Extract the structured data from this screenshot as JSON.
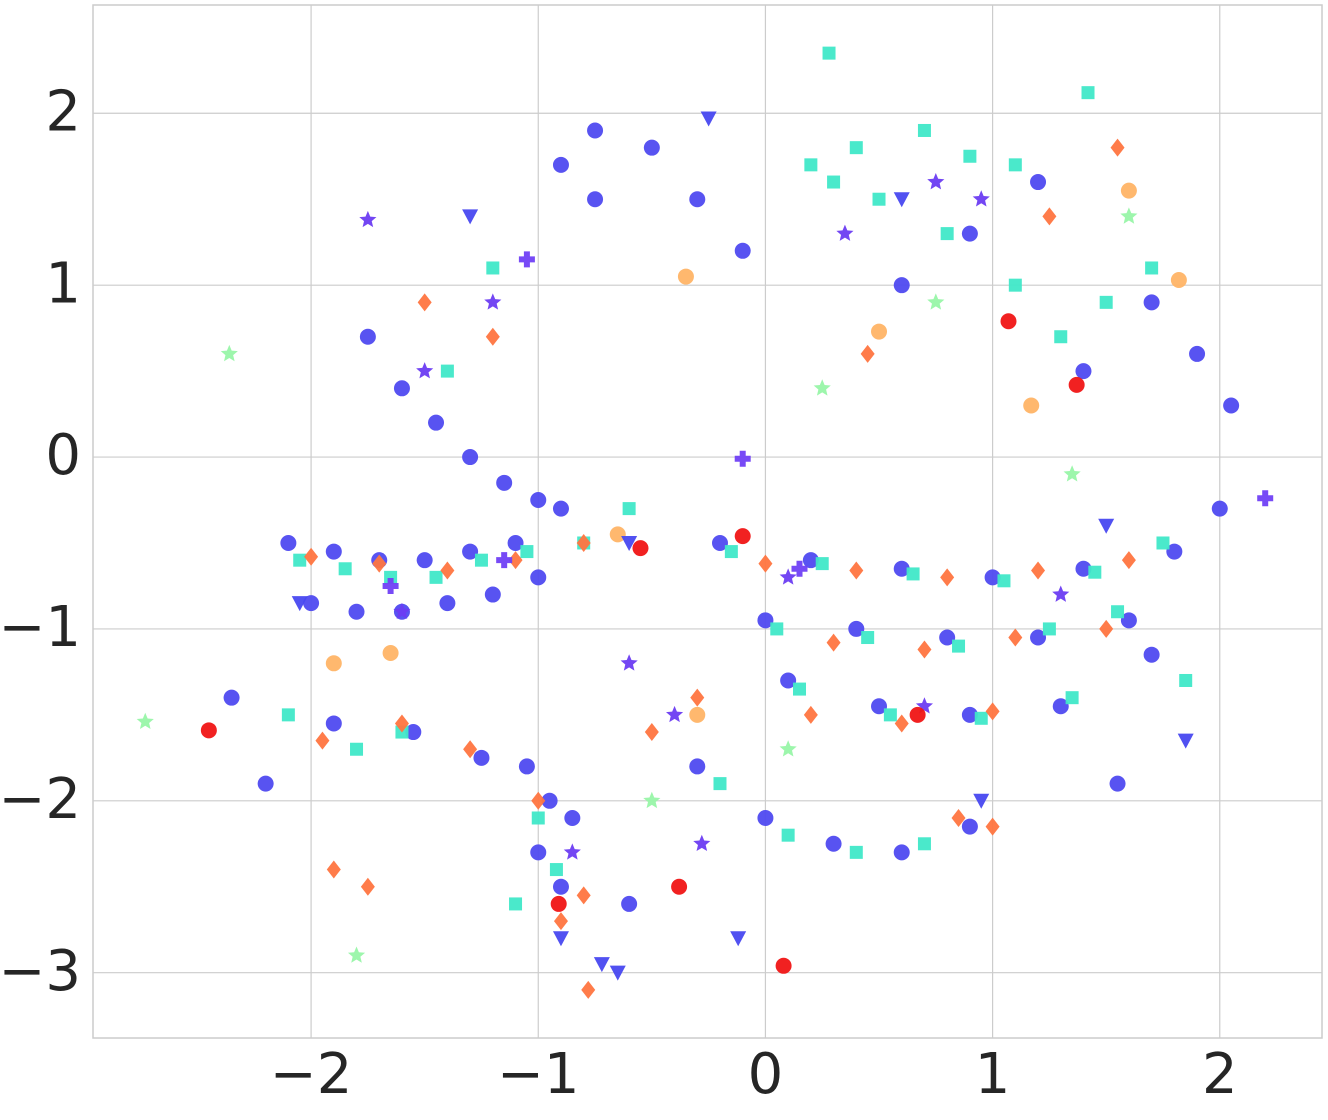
{
  "chart_data": {
    "type": "scatter",
    "xlim": [
      -2.96,
      2.45
    ],
    "ylim": [
      -3.38,
      2.63
    ],
    "xticks": [
      {
        "value": -2,
        "label": "−2"
      },
      {
        "value": -1,
        "label": "−1"
      },
      0,
      1,
      2
    ],
    "yticks": [
      {
        "value": -3,
        "label": "−3"
      },
      {
        "value": -2,
        "label": "−2"
      },
      {
        "value": -1,
        "label": "−1"
      },
      0,
      1,
      2
    ],
    "grid": true,
    "series": [
      {
        "color": "#4f4af0",
        "marker": "circle",
        "x": [
          -2.1,
          -1.9,
          -1.7,
          -1.5,
          -1.3,
          -1.1,
          -2.0,
          -1.8,
          -1.6,
          -1.4,
          -1.2,
          -1.0,
          -1.75,
          -1.6,
          -1.45,
          -1.3,
          -1.15,
          -1.0,
          -0.9,
          -0.2,
          0.2,
          0.6,
          1.0,
          1.4,
          1.8,
          2.0,
          0.0,
          0.4,
          0.8,
          1.2,
          1.6,
          0.1,
          0.5,
          0.9,
          1.3,
          -0.3,
          0.0,
          0.3,
          0.6,
          0.9,
          -1.05,
          -0.95,
          -1.0,
          -0.9,
          -0.75,
          -0.5,
          -0.3,
          -0.1,
          1.4,
          1.7,
          1.9,
          0.6,
          0.9,
          1.2,
          -0.9,
          -0.75,
          -2.2,
          -2.35,
          -1.9,
          -1.55,
          -1.25,
          -0.85,
          -0.6,
          1.55,
          1.7,
          2.05
        ],
        "y": [
          -0.5,
          -0.55,
          -0.6,
          -0.6,
          -0.55,
          -0.5,
          -0.85,
          -0.9,
          -0.9,
          -0.85,
          -0.8,
          -0.7,
          0.7,
          0.4,
          0.2,
          0.0,
          -0.15,
          -0.25,
          -0.3,
          -0.5,
          -0.6,
          -0.65,
          -0.7,
          -0.65,
          -0.55,
          -0.3,
          -0.95,
          -1.0,
          -1.05,
          -1.05,
          -0.95,
          -1.3,
          -1.45,
          -1.5,
          -1.45,
          -1.8,
          -2.1,
          -2.25,
          -2.3,
          -2.15,
          -1.8,
          -2.0,
          -2.3,
          -2.5,
          1.9,
          1.8,
          1.5,
          1.2,
          0.5,
          0.9,
          0.6,
          1.0,
          1.3,
          1.6,
          1.7,
          1.5,
          -1.9,
          -1.4,
          -1.55,
          -1.6,
          -1.75,
          -2.1,
          -2.6,
          -1.9,
          -1.15,
          0.3
        ]
      },
      {
        "color": "#40e8c8",
        "marker": "square",
        "x": [
          -2.05,
          -1.85,
          -1.65,
          -1.45,
          -1.25,
          -1.05,
          -0.15,
          0.25,
          0.65,
          1.05,
          1.45,
          1.75,
          0.05,
          0.45,
          0.85,
          1.25,
          1.55,
          0.15,
          0.55,
          0.95,
          1.35,
          -0.2,
          0.1,
          0.4,
          0.7,
          -1.0,
          -0.92,
          -1.1,
          0.3,
          0.5,
          0.8,
          1.1,
          1.3,
          1.5,
          1.7,
          0.2,
          0.4,
          0.7,
          0.9,
          1.1,
          -1.2,
          -1.4,
          -0.6,
          -0.8,
          -2.1,
          -1.8,
          -1.6,
          0.28,
          1.42,
          1.85
        ],
        "y": [
          -0.6,
          -0.65,
          -0.7,
          -0.7,
          -0.6,
          -0.55,
          -0.55,
          -0.62,
          -0.68,
          -0.72,
          -0.67,
          -0.5,
          -1.0,
          -1.05,
          -1.1,
          -1.0,
          -0.9,
          -1.35,
          -1.5,
          -1.52,
          -1.4,
          -1.9,
          -2.2,
          -2.3,
          -2.25,
          -2.1,
          -2.4,
          -2.6,
          1.6,
          1.5,
          1.3,
          1.0,
          0.7,
          0.9,
          1.1,
          1.7,
          1.8,
          1.9,
          1.75,
          1.7,
          1.1,
          0.5,
          -0.3,
          -0.5,
          -1.5,
          -1.7,
          -1.6,
          2.35,
          2.12,
          -1.3
        ]
      },
      {
        "color": "#ff7540",
        "marker": "diamond",
        "x": [
          -2.0,
          -1.7,
          -1.4,
          -1.1,
          -0.8,
          -1.95,
          -1.6,
          -1.3,
          0.0,
          0.4,
          0.8,
          1.2,
          1.6,
          0.3,
          0.7,
          1.1,
          1.5,
          0.2,
          0.6,
          1.0,
          -0.5,
          -0.3,
          -1.0,
          -0.9,
          -0.8,
          -1.5,
          -1.2,
          0.45,
          1.25,
          1.55,
          -1.75,
          -1.9,
          -0.78,
          1.0,
          0.85
        ],
        "y": [
          -0.58,
          -0.62,
          -0.66,
          -0.6,
          -0.5,
          -1.65,
          -1.55,
          -1.7,
          -0.62,
          -0.66,
          -0.7,
          -0.66,
          -0.6,
          -1.08,
          -1.12,
          -1.05,
          -1.0,
          -1.5,
          -1.55,
          -1.48,
          -1.6,
          -1.4,
          -2.0,
          -2.7,
          -2.55,
          0.9,
          0.7,
          0.6,
          1.4,
          1.8,
          -2.5,
          -2.4,
          -3.1,
          -2.15,
          -2.1
        ]
      },
      {
        "color": "#6b3cf2",
        "marker": "star",
        "x": [
          -1.75,
          -1.5,
          -1.2,
          -0.6,
          -0.4,
          0.1,
          0.35,
          0.75,
          0.95,
          1.3,
          -0.85,
          -1.6,
          -0.28,
          0.7
        ],
        "y": [
          1.38,
          0.5,
          0.9,
          -1.2,
          -1.5,
          -0.7,
          1.3,
          1.6,
          1.5,
          -0.8,
          -2.3,
          -0.9,
          -2.25,
          -1.45
        ]
      },
      {
        "color": "#f01515",
        "marker": "circle",
        "x": [
          -2.45,
          -0.55,
          -0.1,
          0.08,
          1.07,
          1.37,
          0.67,
          -0.38,
          -0.91
        ],
        "y": [
          -1.59,
          -0.53,
          -0.46,
          -2.96,
          0.79,
          0.42,
          -1.5,
          -2.5,
          -2.6
        ]
      },
      {
        "color": "#98f5a8",
        "marker": "star",
        "x": [
          -2.73,
          -2.36,
          -1.8,
          0.25,
          0.75,
          1.35,
          1.6,
          -0.5,
          0.1
        ],
        "y": [
          -1.54,
          0.6,
          -2.9,
          0.4,
          0.9,
          -0.1,
          1.4,
          -2.0,
          -1.7
        ]
      },
      {
        "color": "#ffb466",
        "marker": "circle",
        "x": [
          -1.65,
          -0.65,
          -0.35,
          0.5,
          1.6,
          1.82,
          1.17,
          -1.9,
          -0.3
        ],
        "y": [
          -1.14,
          -0.45,
          1.05,
          0.73,
          1.55,
          1.03,
          0.3,
          -1.2,
          -1.5
        ]
      },
      {
        "color": "#4848f0",
        "marker": "triangle",
        "x": [
          -1.3,
          -2.05,
          -0.6,
          -0.25,
          0.6,
          0.95,
          1.85,
          -0.12,
          -0.72,
          -0.65,
          -0.9,
          1.5
        ],
        "y": [
          1.4,
          -0.85,
          -0.5,
          1.97,
          1.5,
          -2.0,
          -1.65,
          -2.8,
          -2.95,
          -3.0,
          -2.8,
          -0.4
        ]
      },
      {
        "color": "#7040f5",
        "marker": "plus",
        "x": [
          2.2,
          -0.1,
          -1.65,
          -1.15,
          -1.05,
          0.15
        ],
        "y": [
          -0.24,
          -0.01,
          -0.75,
          -0.6,
          1.15,
          -0.65
        ]
      }
    ]
  }
}
